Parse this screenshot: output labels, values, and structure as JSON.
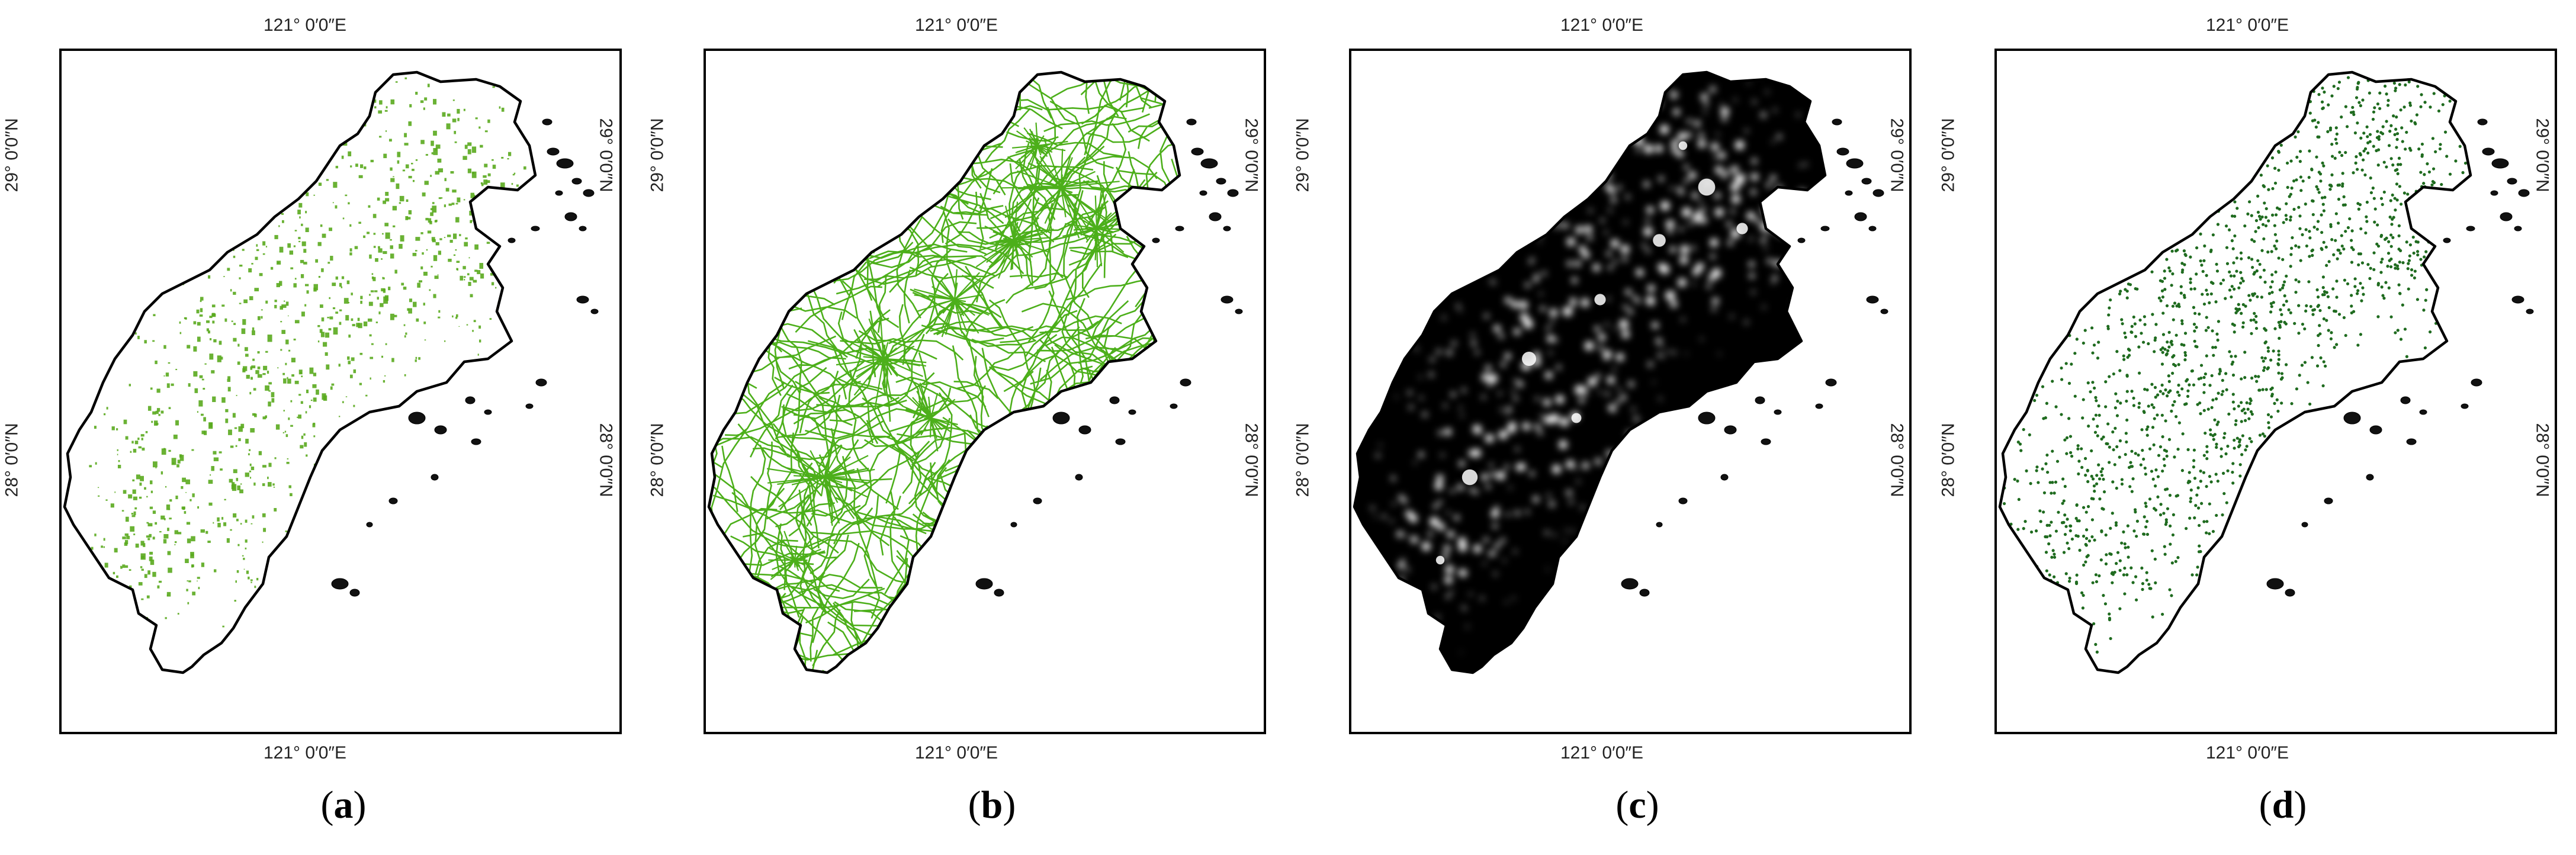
{
  "axes": {
    "lon_label": "121° 0′0″E",
    "lat_top_label": "29° 0′0″N",
    "lat_bottom_label": "28° 0′0″N"
  },
  "panels": [
    {
      "id": "a",
      "caption_letter": "a",
      "fill_style": "patches",
      "fill_color": "#5aaa1e",
      "region_fill": "#ffffff",
      "outline": "#000000"
    },
    {
      "id": "b",
      "caption_letter": "b",
      "fill_style": "network",
      "fill_color": "#4caf1a",
      "region_fill": "#ffffff",
      "outline": "#000000"
    },
    {
      "id": "c",
      "caption_letter": "c",
      "fill_style": "nightlight",
      "fill_color": "#ffffff",
      "region_fill": "#000000",
      "outline": "#000000"
    },
    {
      "id": "d",
      "caption_letter": "d",
      "fill_style": "points",
      "fill_color": "#1f6b1f",
      "region_fill": "#ffffff",
      "outline": "#000000"
    }
  ]
}
